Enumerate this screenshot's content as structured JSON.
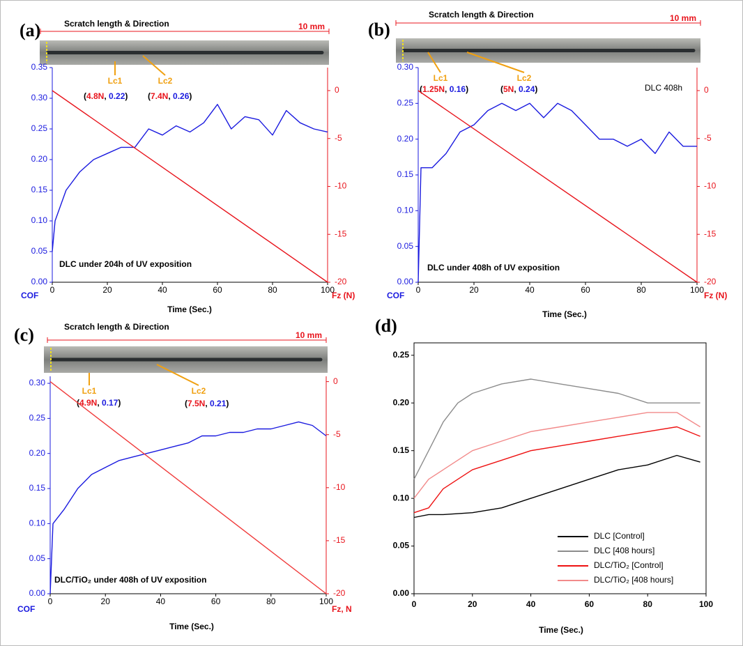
{
  "chart_data": [
    {
      "type": "line",
      "panel_label": "(a)",
      "scratch_title": "Scratch length & Direction",
      "scale_label": "10 mm",
      "lc": [
        {
          "label": "Lc1",
          "parts": [
            "(",
            "4.8N",
            ", ",
            "0.22",
            ")"
          ]
        },
        {
          "label": "Lc2",
          "parts": [
            "(",
            "7.4N",
            ", ",
            "0.26",
            ")"
          ]
        }
      ],
      "subtitle": "DLC under 204h of UV exposition",
      "xlabel": "Time (Sec.)",
      "ylabel": "COF",
      "y2label": "Fz (N)",
      "xlim": [
        0,
        100
      ],
      "xticks": [
        0,
        20,
        40,
        60,
        80,
        100
      ],
      "ylim": [
        0,
        0.35
      ],
      "yticks": [
        {
          "value": 0,
          "label": "0.00"
        },
        0.05,
        {
          "value": 0.1,
          "label": "0.10"
        },
        0.15,
        {
          "value": 0.2,
          "label": "0.20"
        },
        0.25,
        {
          "value": 0.3,
          "label": "0.30"
        },
        0.35
      ],
      "y2lim": [
        -20,
        2.4
      ],
      "y2ticks": [
        0,
        -5,
        -10,
        -15,
        -20
      ],
      "series": [
        {
          "color": "#1a1adf",
          "x": [
            0,
            1,
            5,
            10,
            15,
            20,
            25,
            30,
            35,
            40,
            45,
            50,
            55,
            60,
            65,
            70,
            75,
            80,
            85,
            90,
            95,
            100
          ],
          "values": [
            0.05,
            0.1,
            0.15,
            0.18,
            0.2,
            0.21,
            0.22,
            0.22,
            0.25,
            0.24,
            0.255,
            0.245,
            0.26,
            0.29,
            0.25,
            0.27,
            0.265,
            0.24,
            0.28,
            0.26,
            0.25,
            0.245
          ]
        },
        {
          "color": "#e8141c",
          "axis": "y2",
          "x": [
            0,
            100
          ],
          "values": [
            0,
            -20
          ]
        }
      ]
    },
    {
      "type": "line",
      "panel_label": "(b)",
      "scratch_title": "Scratch length & Direction",
      "scale_label": "10 mm",
      "lc": [
        {
          "label": "Lc1",
          "parts": [
            "(",
            "1.25N",
            ", ",
            "0.16",
            ")"
          ]
        },
        {
          "label": "Lc2",
          "parts": [
            "(",
            "5N",
            ", ",
            "0.24",
            ")"
          ]
        }
      ],
      "note": "DLC 408h",
      "subtitle": "DLC under 408h of UV exposition",
      "xlabel": "Time (Sec.)",
      "ylabel": "COF",
      "y2label": "Fz (N)",
      "xlim": [
        0,
        100
      ],
      "xticks": [
        0,
        20,
        40,
        60,
        80,
        100
      ],
      "ylim": [
        0,
        0.3
      ],
      "yticks": [
        {
          "value": 0,
          "label": "0.00"
        },
        0.05,
        {
          "value": 0.1,
          "label": "0.10"
        },
        0.15,
        {
          "value": 0.2,
          "label": "0.20"
        },
        0.25,
        {
          "value": 0.3,
          "label": "0.30"
        }
      ],
      "y2lim": [
        -20,
        2.4
      ],
      "y2ticks": [
        0,
        -5,
        -10,
        -15,
        -20
      ],
      "series": [
        {
          "color": "#1a1adf",
          "x": [
            0,
            1,
            5,
            10,
            15,
            20,
            25,
            30,
            35,
            40,
            45,
            50,
            55,
            60,
            65,
            70,
            75,
            80,
            85,
            90,
            95,
            100
          ],
          "values": [
            0,
            0.16,
            0.16,
            0.18,
            0.21,
            0.22,
            0.24,
            0.25,
            0.24,
            0.25,
            0.23,
            0.25,
            0.24,
            0.22,
            0.2,
            0.2,
            0.19,
            0.2,
            0.18,
            0.21,
            0.19,
            0.19
          ]
        },
        {
          "color": "#e8141c",
          "axis": "y2",
          "x": [
            0,
            100
          ],
          "values": [
            0,
            -20
          ]
        }
      ]
    },
    {
      "type": "line",
      "panel_label": "(c)",
      "scratch_title": "Scratch length & Direction",
      "scale_label": "10 mm",
      "lc": [
        {
          "label": "Lc1",
          "parts": [
            "(",
            "4.9N",
            ", ",
            "0.17",
            ")"
          ]
        },
        {
          "label": "Lc2",
          "parts": [
            "(",
            "7.5N",
            ", ",
            "0.21",
            ")"
          ]
        }
      ],
      "subtitle": "DLC/TiO₂ under 408h of UV exposition",
      "xlabel": "Time (Sec.)",
      "ylabel": "COF",
      "y2label": "Fz, N",
      "xlim": [
        0,
        100
      ],
      "xticks": [
        0,
        20,
        40,
        60,
        80,
        100
      ],
      "ylim": [
        0,
        0.31
      ],
      "yticks": [
        {
          "value": 0,
          "label": "0.00"
        },
        0.05,
        {
          "value": 0.1,
          "label": "0.10"
        },
        0.15,
        {
          "value": 0.2,
          "label": "0.20"
        },
        0.25,
        {
          "value": 0.3,
          "label": "0.30"
        }
      ],
      "y2lim": [
        -20,
        0.5
      ],
      "y2ticks": [
        0,
        -5,
        -10,
        -15,
        -20
      ],
      "series": [
        {
          "color": "#1a1adf",
          "x": [
            0,
            1,
            5,
            10,
            15,
            20,
            25,
            30,
            35,
            40,
            45,
            50,
            55,
            60,
            65,
            70,
            75,
            80,
            85,
            90,
            95,
            100
          ],
          "values": [
            0,
            0.1,
            0.12,
            0.15,
            0.17,
            0.18,
            0.19,
            0.195,
            0.2,
            0.205,
            0.21,
            0.215,
            0.225,
            0.225,
            0.23,
            0.23,
            0.235,
            0.235,
            0.24,
            0.245,
            0.24,
            0.225
          ]
        },
        {
          "color": "#f03a3a",
          "axis": "y2",
          "x": [
            0,
            100
          ],
          "values": [
            0,
            -20
          ]
        }
      ]
    },
    {
      "type": "line",
      "panel_label": "(d)",
      "xlabel": "Time (Sec.)",
      "legend": "lower right",
      "xlim": [
        0,
        100
      ],
      "xticks": [
        0,
        20,
        40,
        60,
        80,
        100
      ],
      "ylim": [
        0,
        0.263
      ],
      "yticks": [
        {
          "value": 0,
          "label": "0.00"
        },
        0.05,
        {
          "value": 0.1,
          "label": "0.10"
        },
        0.15,
        {
          "value": 0.2,
          "label": "0.20"
        },
        0.25
      ],
      "series": [
        {
          "name": "DLC [Control]",
          "color": "#000000",
          "x": [
            0,
            5,
            10,
            20,
            30,
            40,
            50,
            60,
            70,
            80,
            90,
            98
          ],
          "values": [
            0.08,
            0.083,
            0.083,
            0.085,
            0.09,
            0.1,
            0.11,
            0.12,
            0.13,
            0.135,
            0.145,
            0.138
          ]
        },
        {
          "name": "DLC [408 hours]",
          "color": "#8c8c8c",
          "x": [
            0,
            5,
            10,
            15,
            20,
            30,
            40,
            50,
            60,
            70,
            80,
            90,
            98
          ],
          "values": [
            0.12,
            0.15,
            0.18,
            0.2,
            0.21,
            0.22,
            0.225,
            0.22,
            0.215,
            0.21,
            0.2,
            0.2,
            0.2
          ]
        },
        {
          "name": "DLC/TiO₂ [Control]",
          "color": "#ee1111",
          "x": [
            0,
            5,
            10,
            15,
            20,
            30,
            40,
            50,
            60,
            70,
            80,
            90,
            98
          ],
          "values": [
            0.085,
            0.09,
            0.11,
            0.12,
            0.13,
            0.14,
            0.15,
            0.155,
            0.16,
            0.165,
            0.17,
            0.175,
            0.165
          ]
        },
        {
          "name": "DLC/TiO₂ [408 hours]",
          "color": "#f28a8a",
          "x": [
            0,
            5,
            10,
            20,
            30,
            40,
            50,
            60,
            70,
            80,
            90,
            98
          ],
          "values": [
            0.1,
            0.12,
            0.13,
            0.15,
            0.16,
            0.17,
            0.175,
            0.18,
            0.185,
            0.19,
            0.19,
            0.175
          ]
        }
      ]
    }
  ]
}
